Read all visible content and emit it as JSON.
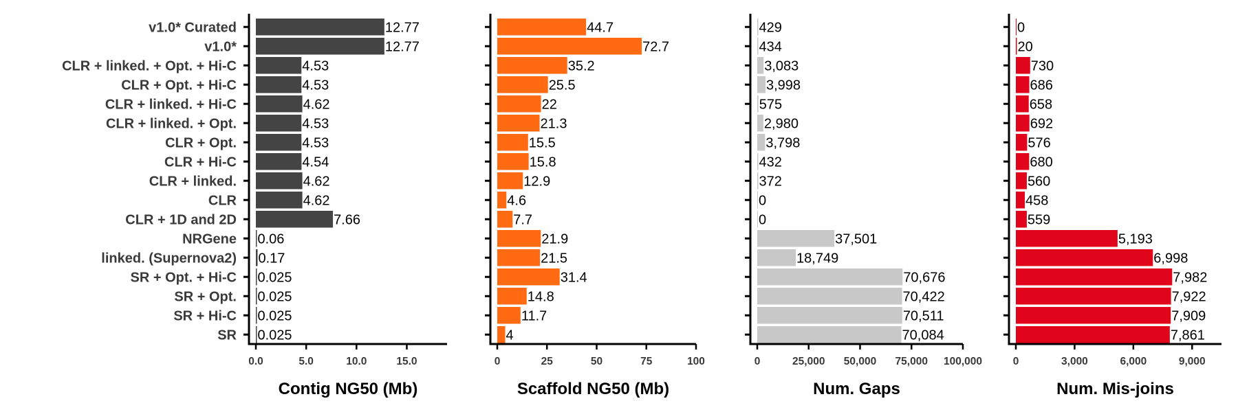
{
  "chart_data": {
    "type": "bar",
    "orientation": "horizontal",
    "categories": [
      "v1.0* Curated",
      "v1.0*",
      "CLR + linked. + Opt. + Hi-C",
      "CLR + Opt. + Hi-C",
      "CLR + linked. + Hi-C",
      "CLR + linked. + Opt.",
      "CLR + Opt.",
      "CLR + Hi-C",
      "CLR + linked.",
      "CLR",
      "CLR + 1D and 2D",
      "NRGene",
      "linked. (Supernova2)",
      "SR + Opt. + Hi-C",
      "SR + Opt.",
      "SR + Hi-C",
      "SR"
    ],
    "panels": [
      {
        "xlabel": "Contig NG50 (Mb)",
        "color": "#444444",
        "xlim": [
          0,
          19
        ],
        "ticks": [
          0,
          5,
          10,
          15
        ],
        "tick_labels": [
          "0.0",
          "5.0",
          "10.0",
          "15.0"
        ],
        "values": [
          12.77,
          12.77,
          4.53,
          4.53,
          4.62,
          4.53,
          4.53,
          4.54,
          4.62,
          4.62,
          7.66,
          0.06,
          0.17,
          0.025,
          0.025,
          0.025,
          0.025
        ],
        "labels": [
          "12.77",
          "12.77",
          "4.53",
          "4.53",
          "4.62",
          "4.53",
          "4.53",
          "4.54",
          "4.62",
          "4.62",
          "7.66",
          "0.06",
          "0.17",
          "0.025",
          "0.025",
          "0.025",
          "0.025"
        ]
      },
      {
        "xlabel": "Scaffold NG50 (Mb)",
        "color": "#ff6a13",
        "xlim": [
          0,
          100
        ],
        "ticks": [
          0,
          25,
          50,
          75,
          100
        ],
        "tick_labels": [
          "0",
          "25",
          "50",
          "75",
          "100"
        ],
        "values": [
          44.7,
          72.7,
          35.2,
          25.5,
          22,
          21.3,
          15.5,
          15.8,
          12.9,
          4.6,
          7.7,
          21.9,
          21.5,
          31.4,
          14.8,
          11.7,
          4
        ],
        "labels": [
          "44.7",
          "72.7",
          "35.2",
          "25.5",
          "22",
          "21.3",
          "15.5",
          "15.8",
          "12.9",
          "4.6",
          "7.7",
          "21.9",
          "21.5",
          "31.4",
          "14.8",
          "11.7",
          "4"
        ]
      },
      {
        "xlabel": "Num. Gaps",
        "color": "#c8c8c8",
        "xlim": [
          0,
          100000
        ],
        "ticks": [
          0,
          25000,
          50000,
          75000,
          100000
        ],
        "tick_labels": [
          "0",
          "25,000",
          "50,000",
          "75,000",
          "100,000"
        ],
        "values": [
          429,
          434,
          3083,
          3998,
          575,
          2980,
          3798,
          432,
          372,
          0,
          0,
          37501,
          18749,
          70676,
          70422,
          70511,
          70084
        ],
        "labels": [
          "429",
          "434",
          "3,083",
          "3,998",
          "575",
          "2,980",
          "3,798",
          "432",
          "372",
          "0",
          "0",
          "37,501",
          "18,749",
          "70,676",
          "70,422",
          "70,511",
          "70,084"
        ]
      },
      {
        "xlabel": "Num. Mis-joins",
        "color": "#e0051a",
        "xlim": [
          0,
          10500
        ],
        "ticks": [
          0,
          3000,
          6000,
          9000
        ],
        "tick_labels": [
          "0",
          "3,000",
          "6,000",
          "9,000"
        ],
        "values": [
          0,
          20,
          730,
          686,
          658,
          692,
          576,
          680,
          560,
          458,
          559,
          5193,
          6998,
          7982,
          7922,
          7909,
          7861
        ],
        "labels": [
          "0",
          "20",
          "730",
          "686",
          "658",
          "692",
          "576",
          "680",
          "560",
          "458",
          "559",
          "5,193",
          "6,998",
          "7,982",
          "7,922",
          "7,909",
          "7,861"
        ]
      }
    ]
  }
}
